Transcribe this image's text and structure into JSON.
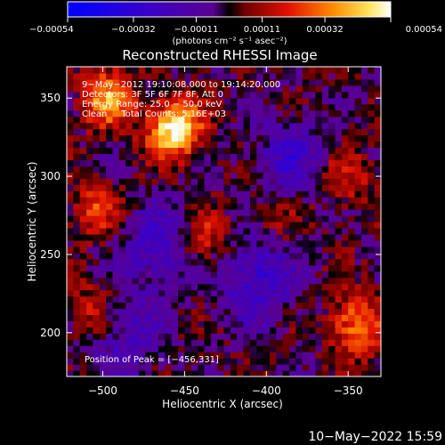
{
  "chart_data": {
    "type": "heatmap",
    "title": "Reconstructed RHESSI Image",
    "xlabel": "Heliocentric X (arcsec)",
    "ylabel": "Heliocentric Y (arcsec)",
    "xlim": [
      -522,
      -330
    ],
    "ylim": [
      172,
      370
    ],
    "x_ticks": [
      -500,
      -450,
      -400,
      -350
    ],
    "y_ticks": [
      200,
      250,
      300,
      350
    ],
    "x_tick_labels": [
      "−500",
      "−450",
      "−400",
      "−350"
    ],
    "y_tick_labels": [
      "200",
      "250",
      "300",
      "350"
    ],
    "colorbar": {
      "range": [
        -0.00054,
        0.00054
      ],
      "ticks": [
        -0.00054,
        -0.00032,
        -0.00011,
        0.00011,
        0.00032,
        0.00054
      ],
      "tick_labels": [
        "−0.00054",
        "−0.00032",
        "−0.00011",
        "0.00011",
        "0.00032",
        "0.00054"
      ],
      "units_label": "(photons cm⁻² s⁻¹ asec⁻²)"
    },
    "annotations": [
      "9−May−2012 19:10:08.000 to 19:14:20.000",
      "Detectors: 3F 5F 6F 7F 8F, Att 0",
      "Energy Range: 25.0 − 50.0 keV",
      "Clean     Total Counts: 5.16E+03"
    ],
    "peak_label": "Position of Peak = [−456,331]",
    "peak_position": [
      -456,
      331
    ],
    "sources": [
      {
        "x": -456,
        "y": 331,
        "peak": 0.00054
      },
      {
        "x": -497,
        "y": 350,
        "peak": 0.00036
      },
      {
        "x": -505,
        "y": 280,
        "peak": 0.00022
      },
      {
        "x": -440,
        "y": 260,
        "peak": 0.00022
      },
      {
        "x": -345,
        "y": 205,
        "peak": 0.00034
      },
      {
        "x": -352,
        "y": 298,
        "peak": 0.00018
      },
      {
        "x": -395,
        "y": 275,
        "peak": 0.00012
      },
      {
        "x": -510,
        "y": 215,
        "peak": 0.00016
      }
    ],
    "negative_regions": [
      {
        "x": -465,
        "y": 255,
        "depth": -0.00026
      },
      {
        "x": -405,
        "y": 235,
        "depth": -0.00028
      },
      {
        "x": -385,
        "y": 310,
        "depth": -0.00022
      },
      {
        "x": -485,
        "y": 195,
        "depth": -0.00018
      }
    ]
  },
  "footer": {
    "timestamp": "10−May−2022 15:59"
  }
}
